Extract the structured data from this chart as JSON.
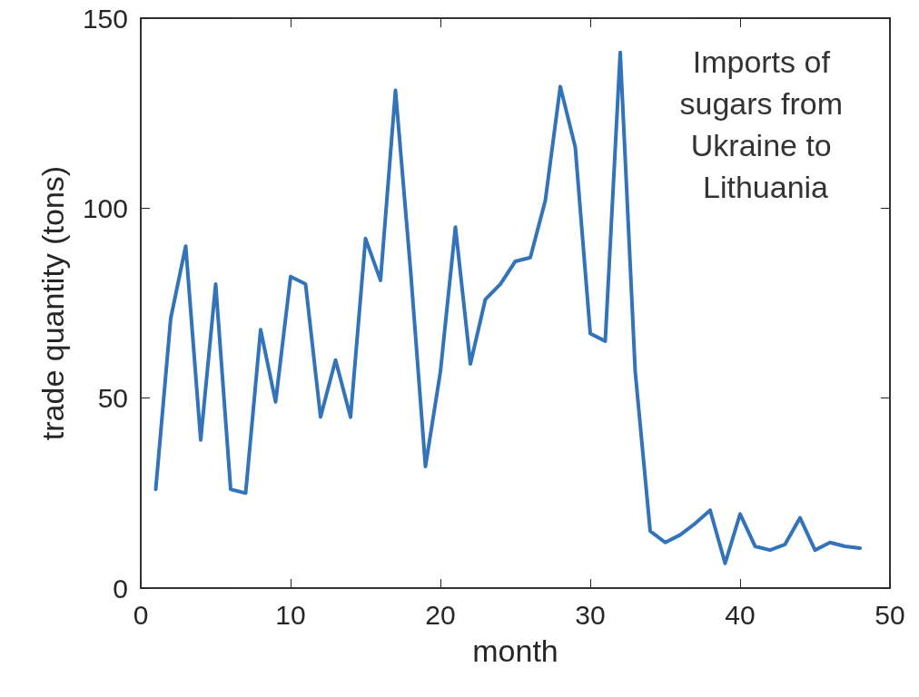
{
  "chart_data": {
    "type": "line",
    "xlabel": "month",
    "ylabel": "trade quantity (tons)",
    "annotations": [
      "Imports of sugars from Ukraine to Lithuania"
    ],
    "x": [
      1,
      2,
      3,
      4,
      5,
      6,
      7,
      8,
      9,
      10,
      11,
      12,
      13,
      14,
      15,
      16,
      17,
      18,
      19,
      20,
      21,
      22,
      23,
      24,
      25,
      26,
      27,
      28,
      29,
      30,
      31,
      32,
      33,
      34,
      35,
      36,
      37,
      38,
      39,
      40,
      41,
      42,
      43,
      44,
      45,
      46,
      47,
      48
    ],
    "series": [
      {
        "color": "#3273ba",
        "values": [
          26,
          71,
          90,
          39,
          80,
          26,
          25,
          68,
          49,
          82,
          80,
          45,
          60,
          45,
          92,
          81,
          131,
          84,
          32,
          57,
          95,
          59,
          76,
          80,
          86,
          87,
          102,
          132,
          116,
          67,
          65,
          141,
          57,
          15,
          12,
          14,
          17,
          20.5,
          6.5,
          19.5,
          11,
          10,
          11.5,
          18.5,
          10,
          12,
          11,
          10.5
        ]
      }
    ],
    "xlim": [
      0,
      50
    ],
    "xticks": [
      0,
      10,
      20,
      30,
      40,
      50
    ],
    "ylim": [
      0,
      150
    ],
    "yticks": [
      0,
      50,
      100,
      150
    ],
    "grid": false,
    "marker": "none",
    "line_style": "solid"
  }
}
